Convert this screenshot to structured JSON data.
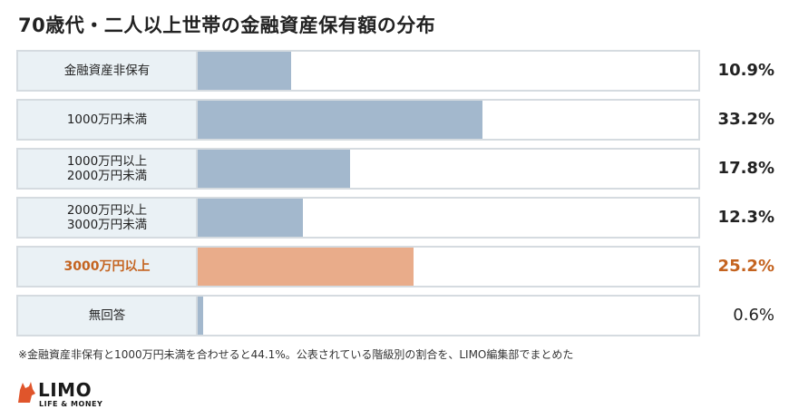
{
  "title": "70歳代・二人以上世帯の金融資産保有額の分布",
  "chart_data": {
    "type": "bar",
    "orientation": "horizontal",
    "title": "70歳代・二人以上世帯の金融資産保有額の分布",
    "xlim": [
      0,
      100
    ],
    "unit": "%",
    "categories": [
      "金融資産非保有",
      "1000万円未満",
      "1000万円以上\n2000万円未満",
      "2000万円以上\n3000万円未満",
      "3000万円以上",
      "無回答"
    ],
    "values": [
      10.9,
      33.2,
      17.8,
      12.3,
      25.2,
      0.6
    ],
    "value_labels": [
      "10.9%",
      "33.2%",
      "17.8%",
      "12.3%",
      "25.2%",
      "0.6%"
    ],
    "highlight_index": 4,
    "colors": {
      "bar": "#a3b8cd",
      "highlight_bar": "#e9ac8a",
      "highlight_text": "#c4631f",
      "label_bg": "#eaf1f5",
      "border": "#d5dbe0"
    }
  },
  "note": "※金融資産非保有と1000万円未満を合わせると44.1%。公表されている階級別の割合を、LIMO編集部でまとめた",
  "logo": {
    "name": "LIMO",
    "tagline": "LIFE & MONEY",
    "icon": "fox-icon"
  }
}
